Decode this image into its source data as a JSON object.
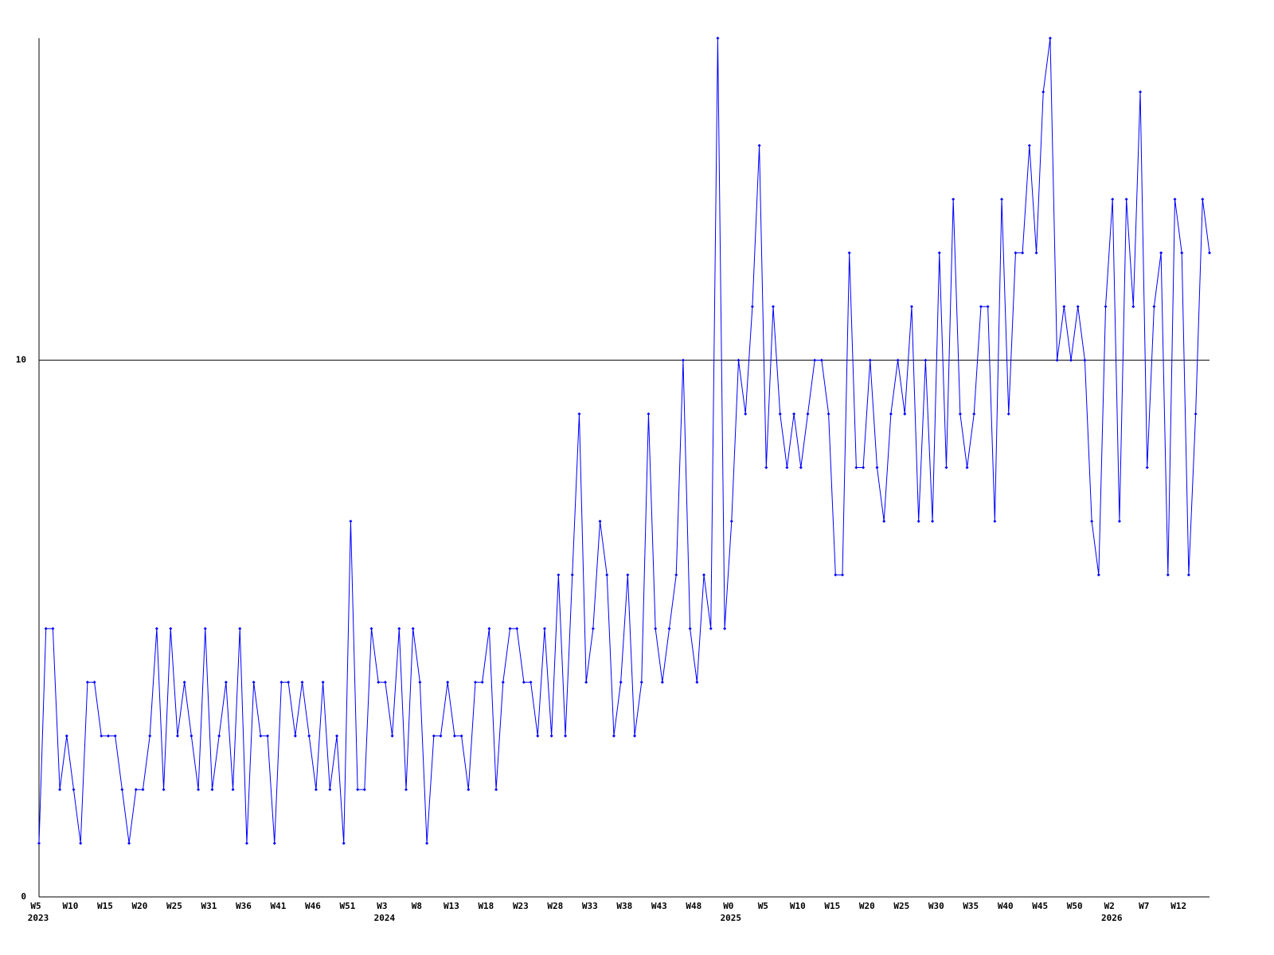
{
  "chart_data": {
    "type": "line",
    "categories": [
      "W5",
      null,
      null,
      null,
      null,
      "W10",
      null,
      null,
      null,
      null,
      "W15",
      null,
      null,
      null,
      null,
      "W20",
      null,
      null,
      null,
      null,
      "W25",
      null,
      null,
      null,
      null,
      "W31",
      null,
      null,
      null,
      null,
      "W36",
      null,
      null,
      null,
      null,
      "W41",
      null,
      null,
      null,
      null,
      "W46",
      null,
      null,
      null,
      null,
      "W51",
      null,
      null,
      null,
      null,
      "W3",
      null,
      null,
      null,
      null,
      "W8",
      null,
      null,
      null,
      null,
      "W13",
      null,
      null,
      null,
      null,
      "W18",
      null,
      null,
      null,
      null,
      "W23",
      null,
      null,
      null,
      null,
      "W28",
      null,
      null,
      null,
      null,
      "W33",
      null,
      null,
      null,
      null,
      "W38",
      null,
      null,
      null,
      null,
      "W43",
      null,
      null,
      null,
      null,
      "W48",
      null,
      null,
      null,
      null,
      "W0",
      null,
      null,
      null,
      null,
      "W5",
      null,
      null,
      null,
      null,
      "W10",
      null,
      null,
      null,
      null,
      "W15",
      null,
      null,
      null,
      null,
      "W20",
      null,
      null,
      null,
      null,
      "W25",
      null,
      null,
      null,
      null,
      "W30",
      null,
      null,
      null,
      null,
      "W35",
      null,
      null,
      null,
      null,
      "W40",
      null,
      null,
      null,
      null,
      "W45",
      null,
      null,
      null,
      null,
      "W50",
      null,
      null,
      null,
      null,
      "W2",
      null,
      null,
      null,
      null,
      "W7",
      null,
      null,
      null,
      null,
      "W12",
      null,
      null,
      null,
      null
    ],
    "years": [
      "2023",
      null,
      null,
      null,
      null,
      null,
      null,
      null,
      null,
      null,
      null,
      null,
      null,
      null,
      null,
      null,
      null,
      null,
      null,
      null,
      null,
      null,
      null,
      null,
      null,
      null,
      null,
      null,
      null,
      null,
      null,
      null,
      null,
      null,
      null,
      null,
      null,
      null,
      null,
      null,
      null,
      null,
      null,
      null,
      null,
      null,
      null,
      null,
      null,
      null,
      "2024",
      null,
      null,
      null,
      null,
      null,
      null,
      null,
      null,
      null,
      null,
      null,
      null,
      null,
      null,
      null,
      null,
      null,
      null,
      null,
      null,
      null,
      null,
      null,
      null,
      null,
      null,
      null,
      null,
      null,
      null,
      null,
      null,
      null,
      null,
      null,
      null,
      null,
      null,
      null,
      null,
      null,
      null,
      null,
      null,
      null,
      null,
      null,
      null,
      null,
      "2025",
      null,
      null,
      null,
      null,
      null,
      null,
      null,
      null,
      null,
      null,
      null,
      null,
      null,
      null,
      null,
      null,
      null,
      null,
      null,
      null,
      null,
      null,
      null,
      null,
      null,
      null,
      null,
      null,
      null,
      null,
      null,
      null,
      null,
      null,
      null,
      null,
      null,
      null,
      null,
      null,
      null,
      null,
      null,
      null,
      null,
      null,
      null,
      null,
      null,
      null,
      null,
      null,
      null,
      null,
      "2026",
      null,
      null,
      null,
      null,
      null,
      null,
      null,
      null,
      null,
      null,
      null,
      null,
      null,
      null
    ],
    "values": [
      1,
      5,
      5,
      2,
      3,
      2,
      1,
      4,
      4,
      3,
      3,
      3,
      2,
      1,
      2,
      2,
      3,
      5,
      2,
      5,
      3,
      4,
      3,
      2,
      5,
      2,
      3,
      4,
      2,
      5,
      1,
      4,
      3,
      3,
      1,
      4,
      4,
      3,
      4,
      3,
      2,
      4,
      2,
      3,
      1,
      7,
      2,
      2,
      5,
      4,
      4,
      3,
      5,
      2,
      5,
      4,
      1,
      3,
      3,
      4,
      3,
      3,
      2,
      4,
      4,
      5,
      2,
      4,
      5,
      5,
      4,
      4,
      3,
      5,
      3,
      6,
      3,
      6,
      9,
      4,
      5,
      7,
      6,
      3,
      4,
      6,
      3,
      4,
      9,
      5,
      4,
      5,
      6,
      10,
      5,
      4,
      6,
      5,
      16,
      5,
      7,
      10,
      9,
      11,
      14,
      8,
      11,
      9,
      8,
      9,
      8,
      9,
      10,
      10,
      9,
      6,
      6,
      12,
      8,
      8,
      10,
      8,
      7,
      9,
      10,
      9,
      11,
      7,
      10,
      7,
      12,
      8,
      13,
      9,
      8,
      9,
      11,
      11,
      7,
      13,
      9,
      12,
      12,
      14,
      12,
      15,
      16,
      10,
      11,
      10,
      11,
      10,
      7,
      6,
      11,
      13,
      7,
      13,
      11,
      15,
      8,
      11,
      12,
      6,
      13,
      12,
      6,
      9,
      13,
      12
    ],
    "color": "#0000ff",
    "ylim": [
      0,
      16
    ],
    "yticks": [
      0,
      10
    ],
    "grid": true
  }
}
